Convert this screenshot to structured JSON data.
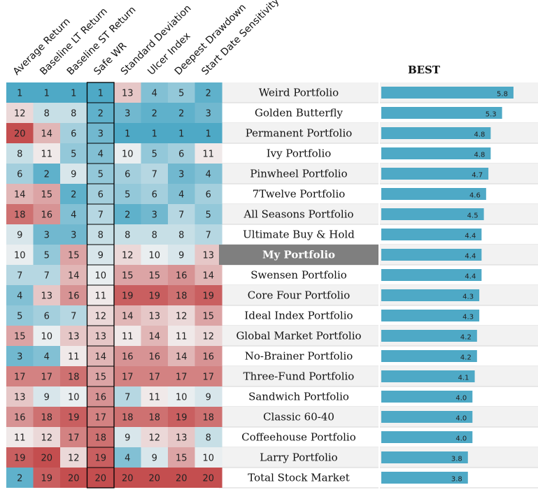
{
  "chart_data": {
    "type": "heatmap",
    "columns": [
      "Average Return",
      "Baseline LT Return",
      "Baseline ST Return",
      "Safe WR",
      "Standard Deviation",
      "Ulcer Index",
      "Deepest Drawdown",
      "Start Date Sensitivity"
    ],
    "highlighted_column": "Safe WR",
    "highlighted_row": "My Portfolio",
    "bar_header": "BEST",
    "bar_max": 6.6,
    "rows": [
      {
        "name": "Weird Portfolio",
        "ranks": [
          1,
          1,
          1,
          1,
          13,
          4,
          5,
          2
        ],
        "score": 5.8
      },
      {
        "name": "Golden Butterfly",
        "ranks": [
          12,
          8,
          8,
          2,
          3,
          2,
          2,
          3
        ],
        "score": 5.3
      },
      {
        "name": "Permanent Portfolio",
        "ranks": [
          20,
          14,
          6,
          3,
          1,
          1,
          1,
          1
        ],
        "score": 4.8
      },
      {
        "name": "Ivy Portfolio",
        "ranks": [
          8,
          11,
          5,
          4,
          10,
          5,
          6,
          11
        ],
        "score": 4.8
      },
      {
        "name": "Pinwheel Portfolio",
        "ranks": [
          6,
          2,
          9,
          5,
          6,
          7,
          3,
          4
        ],
        "score": 4.7
      },
      {
        "name": "7Twelve Portfolio",
        "ranks": [
          14,
          15,
          2,
          6,
          5,
          6,
          4,
          6
        ],
        "score": 4.6
      },
      {
        "name": "All Seasons Portfolio",
        "ranks": [
          18,
          16,
          4,
          7,
          2,
          3,
          7,
          5
        ],
        "score": 4.5
      },
      {
        "name": "Ultimate Buy & Hold",
        "ranks": [
          9,
          3,
          3,
          8,
          8,
          8,
          8,
          7
        ],
        "score": 4.4
      },
      {
        "name": "My Portfolio",
        "ranks": [
          10,
          5,
          15,
          9,
          12,
          10,
          9,
          13
        ],
        "score": 4.4
      },
      {
        "name": "Swensen Portfolio",
        "ranks": [
          7,
          7,
          14,
          10,
          15,
          15,
          16,
          14
        ],
        "score": 4.4
      },
      {
        "name": "Core Four Portfolio",
        "ranks": [
          4,
          13,
          16,
          11,
          19,
          19,
          18,
          19
        ],
        "score": 4.3
      },
      {
        "name": "Ideal Index Portfolio",
        "ranks": [
          5,
          6,
          7,
          12,
          14,
          13,
          12,
          15
        ],
        "score": 4.3
      },
      {
        "name": "Global Market Portfolio",
        "ranks": [
          15,
          10,
          13,
          13,
          11,
          14,
          11,
          12
        ],
        "score": 4.2
      },
      {
        "name": "No-Brainer Portfolio",
        "ranks": [
          3,
          4,
          11,
          14,
          16,
          16,
          14,
          16
        ],
        "score": 4.2
      },
      {
        "name": "Three-Fund Portfolio",
        "ranks": [
          17,
          17,
          18,
          15,
          17,
          17,
          17,
          17
        ],
        "score": 4.1
      },
      {
        "name": "Sandwich Portfolio",
        "ranks": [
          13,
          9,
          10,
          16,
          7,
          11,
          10,
          9
        ],
        "score": 4.0
      },
      {
        "name": "Classic 60-40",
        "ranks": [
          16,
          18,
          19,
          17,
          18,
          18,
          19,
          18
        ],
        "score": 4.0
      },
      {
        "name": "Coffeehouse Portfolio",
        "ranks": [
          11,
          12,
          17,
          18,
          9,
          12,
          13,
          8
        ],
        "score": 4.0
      },
      {
        "name": "Larry Portfolio",
        "ranks": [
          19,
          20,
          12,
          19,
          4,
          9,
          15,
          10
        ],
        "score": 3.8
      },
      {
        "name": "Total Stock Market",
        "ranks": [
          2,
          19,
          20,
          20,
          20,
          20,
          20,
          20
        ],
        "score": 3.8
      }
    ],
    "colors": {
      "low": "#4ea9c6",
      "mid": "#f2f2f2",
      "high": "#c44e4f",
      "bar": "#4ea9c6",
      "row_alt": "#f2f2f2",
      "highlight_row_bg": "#7f7f7f"
    }
  }
}
